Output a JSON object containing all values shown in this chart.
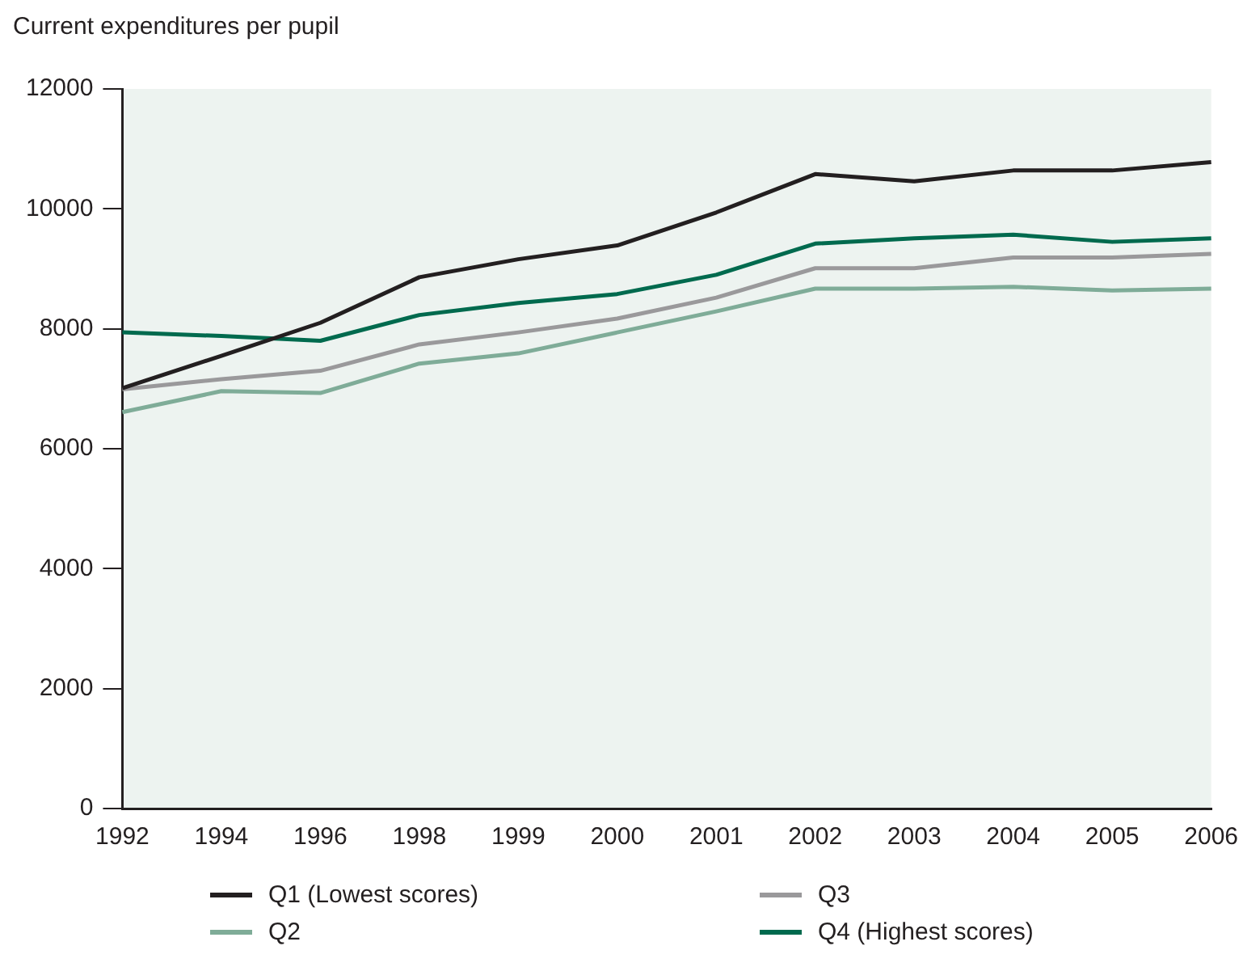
{
  "chart_data": {
    "type": "line",
    "ylabel": "Current expenditures per pupil",
    "categories": [
      "1992",
      "1994",
      "1996",
      "1998",
      "1999",
      "2000",
      "2001",
      "2002",
      "2003",
      "2004",
      "2005",
      "2006"
    ],
    "series": [
      {
        "name": "Q1 (Lowest scores)",
        "color": "#231f20",
        "values": [
          7010,
          7550,
          8100,
          8860,
          9160,
          9390,
          9940,
          10580,
          10460,
          10640,
          10640,
          10780
        ]
      },
      {
        "name": "Q2",
        "color": "#7fac98",
        "values": [
          6610,
          6960,
          6930,
          7420,
          7590,
          7940,
          8290,
          8670,
          8670,
          8700,
          8640,
          8670
        ]
      },
      {
        "name": "Q3",
        "color": "#9a999b",
        "values": [
          6990,
          7160,
          7300,
          7740,
          7940,
          8170,
          8520,
          9010,
          9010,
          9190,
          9190,
          9250
        ]
      },
      {
        "name": "Q4 (Highest scores)",
        "color": "#006a4e",
        "values": [
          7940,
          7880,
          7800,
          8230,
          8430,
          8580,
          8900,
          9420,
          9510,
          9570,
          9450,
          9510
        ]
      }
    ],
    "ylim": [
      0,
      12000
    ],
    "yticks": [
      0,
      2000,
      4000,
      6000,
      8000,
      10000,
      12000
    ],
    "grid": false,
    "legend": "bottom",
    "marker": "none",
    "line_style": "solid"
  }
}
